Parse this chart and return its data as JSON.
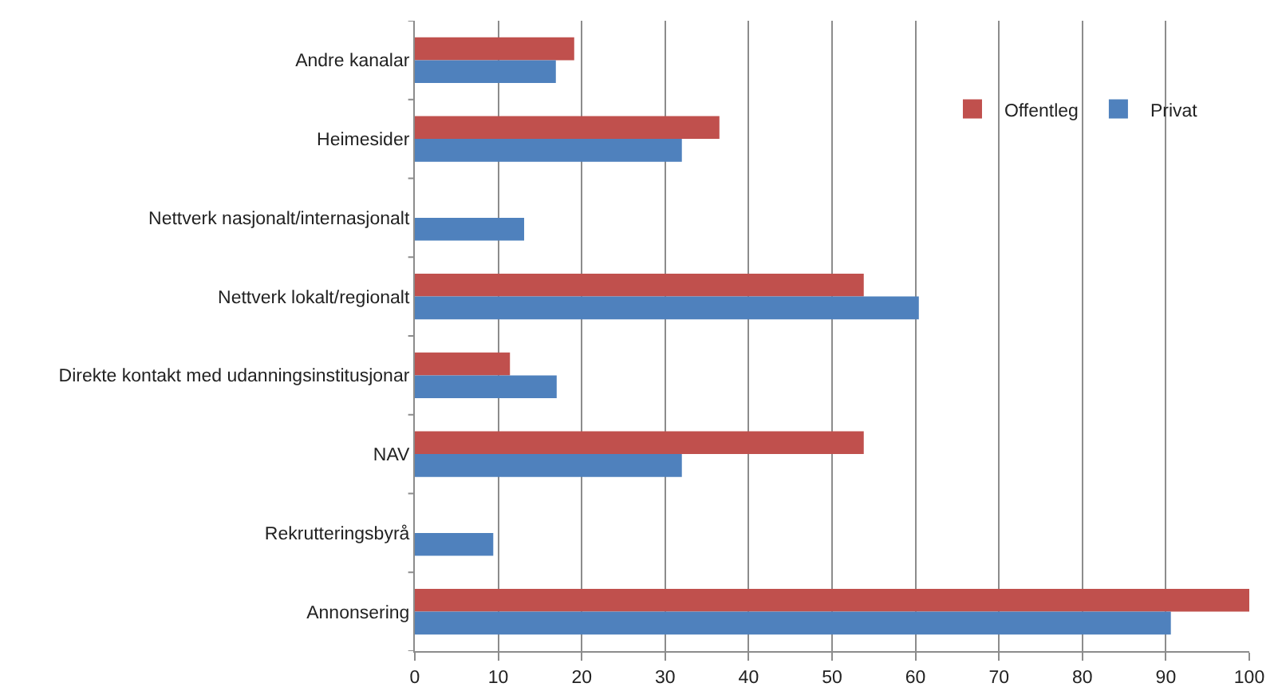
{
  "chart_data": {
    "type": "bar",
    "orientation": "horizontal",
    "categories": [
      "Andre kanalar",
      "Heimesider",
      "Nettverk nasjonalt/internasjonalt",
      "Nettverk lokalt/regionalt",
      "Direkte kontakt med udanningsinstitusjonar",
      "NAV",
      "Rekrutteringsbyrå",
      "Annonsering"
    ],
    "series": [
      {
        "name": "Offentleg",
        "color": "#c0504d",
        "values": [
          19.1,
          36.5,
          null,
          53.8,
          11.4,
          53.8,
          null,
          100
        ]
      },
      {
        "name": "Privat",
        "color": "#4f81bd",
        "values": [
          16.9,
          32.0,
          13.1,
          60.4,
          17.0,
          32.0,
          9.4,
          90.6
        ]
      }
    ],
    "xlim": [
      0,
      100
    ],
    "xticks": [
      0,
      10,
      20,
      30,
      40,
      50,
      60,
      70,
      80,
      90,
      100
    ],
    "grid": "x",
    "legend": "top right"
  }
}
